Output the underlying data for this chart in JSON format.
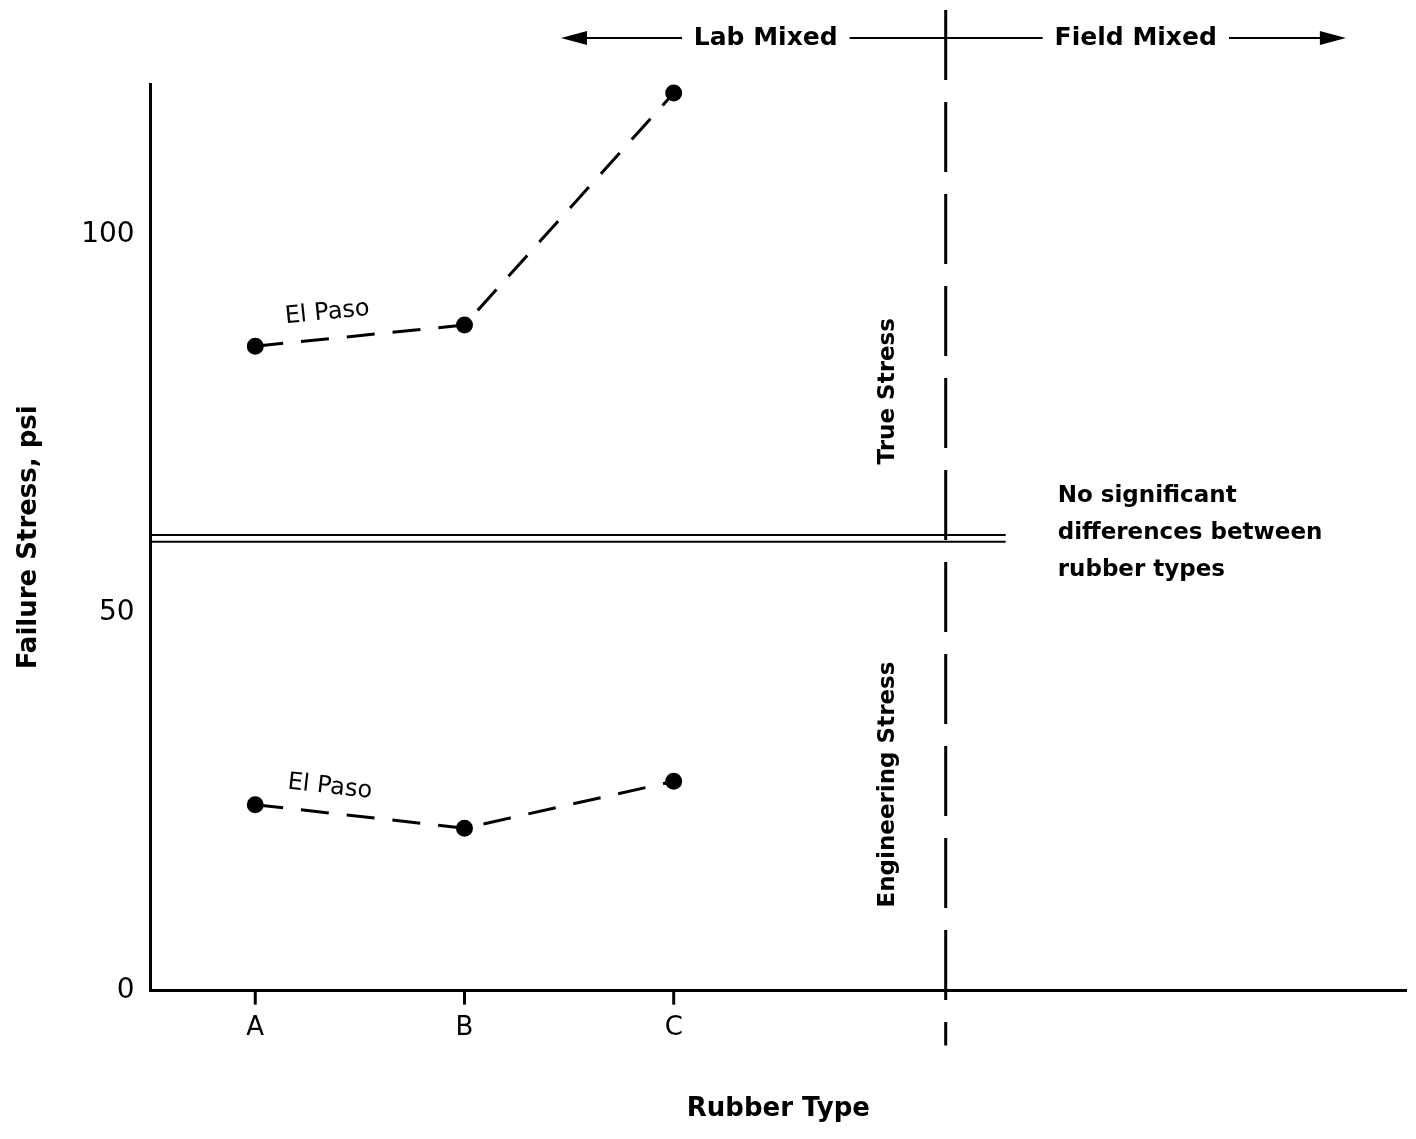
{
  "chart_data": {
    "type": "line",
    "xlabel": "Rubber Type",
    "ylabel": "Failure Stress, psi",
    "categories": [
      "A",
      "B",
      "C",
      null,
      null,
      null
    ],
    "series": [
      {
        "name": "El Paso",
        "color": "#000000",
        "values": [
          85.3,
          88.1,
          118.8,
          null,
          null,
          null
        ]
      },
      {
        "name": "El Paso",
        "color": "#000000",
        "values": [
          24.6,
          21.5,
          27.7,
          null,
          null,
          null
        ]
      }
    ],
    "ylim": [
      0,
      120
    ],
    "yticks": [
      0,
      50,
      100
    ],
    "grid": false,
    "legend": false,
    "marker": "circle",
    "line_style": "dashed",
    "ref_lines": [
      {
        "axis": "y",
        "value": 60.3,
        "color": "#000000",
        "line_style": "solid"
      },
      {
        "axis": "y",
        "value": 59.4,
        "color": "#000000",
        "line_style": "solid"
      }
    ],
    "annotations": [
      "Lab Mixed",
      "Field Mixed",
      "True Stress",
      "Engineering Stress",
      "No significant differences between rubber types"
    ]
  }
}
